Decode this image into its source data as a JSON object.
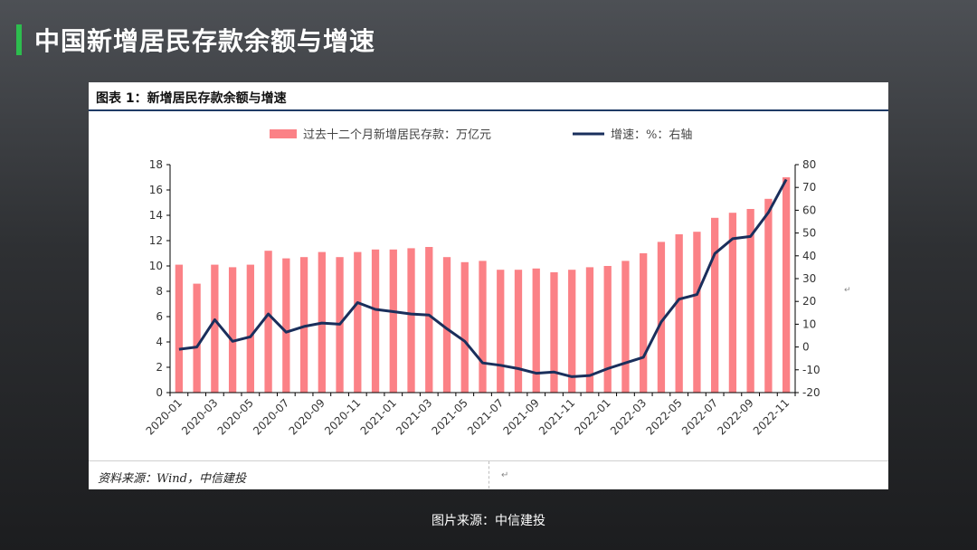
{
  "slide": {
    "title": "中国新增居民存款余额与增速",
    "accent_color": "#2dbd4e",
    "caption": "图片来源：中信建投"
  },
  "card": {
    "figure_label": "图表 1：新增居民存款余额与增速",
    "source_text": "资料来源：Wind，中信建投",
    "paragraph_mark": "↵"
  },
  "chart_data": {
    "type": "bar",
    "categories": [
      "2020-01",
      "2020-02",
      "2020-03",
      "2020-04",
      "2020-05",
      "2020-06",
      "2020-07",
      "2020-08",
      "2020-09",
      "2020-10",
      "2020-11",
      "2020-12",
      "2021-01",
      "2021-02",
      "2021-03",
      "2021-04",
      "2021-05",
      "2021-06",
      "2021-07",
      "2021-08",
      "2021-09",
      "2021-10",
      "2021-11",
      "2021-12",
      "2022-01",
      "2022-02",
      "2022-03",
      "2022-04",
      "2022-05",
      "2022-06",
      "2022-07",
      "2022-08",
      "2022-09",
      "2022-10",
      "2022-11"
    ],
    "x_tick_labels": [
      "2020-01",
      "2020-03",
      "2020-05",
      "2020-07",
      "2020-09",
      "2020-11",
      "2021-01",
      "2021-03",
      "2021-05",
      "2021-07",
      "2021-09",
      "2021-11",
      "2022-01",
      "2022-03",
      "2022-05",
      "2022-07",
      "2022-09",
      "2022-11"
    ],
    "series": [
      {
        "name": "过去十二个月新增居民存款：万亿元",
        "type": "bar",
        "axis": "left",
        "color": "#fb8186",
        "values": [
          10.1,
          8.6,
          10.1,
          9.9,
          10.1,
          11.2,
          10.6,
          10.7,
          11.1,
          10.7,
          11.1,
          11.3,
          11.3,
          11.4,
          11.5,
          10.7,
          10.3,
          10.4,
          9.7,
          9.7,
          9.8,
          9.5,
          9.7,
          9.9,
          10.0,
          10.4,
          11.0,
          11.9,
          12.5,
          12.7,
          13.8,
          14.2,
          14.5,
          15.3,
          17.0
        ]
      },
      {
        "name": "增速：%：右轴",
        "type": "line",
        "axis": "right",
        "color": "#1a2f5c",
        "values": [
          -1,
          0,
          12,
          2.5,
          4.5,
          14.5,
          6.5,
          9,
          10.5,
          10,
          19.5,
          16.5,
          15.5,
          14.5,
          14,
          8,
          2.5,
          -7,
          -8,
          -9.5,
          -11.5,
          -11,
          -13,
          -12.5,
          -9.5,
          -7,
          -4.5,
          11,
          21,
          23,
          41,
          47.5,
          48.5,
          59,
          73.5
        ]
      }
    ],
    "left_axis": {
      "min": 0,
      "max": 18,
      "ticks": [
        0,
        2,
        4,
        6,
        8,
        10,
        12,
        14,
        16,
        18
      ]
    },
    "right_axis": {
      "min": -20,
      "max": 80,
      "ticks": [
        -20,
        -10,
        0,
        10,
        20,
        30,
        40,
        50,
        60,
        70,
        80
      ]
    },
    "legend_position": "top-center",
    "grid": false
  }
}
